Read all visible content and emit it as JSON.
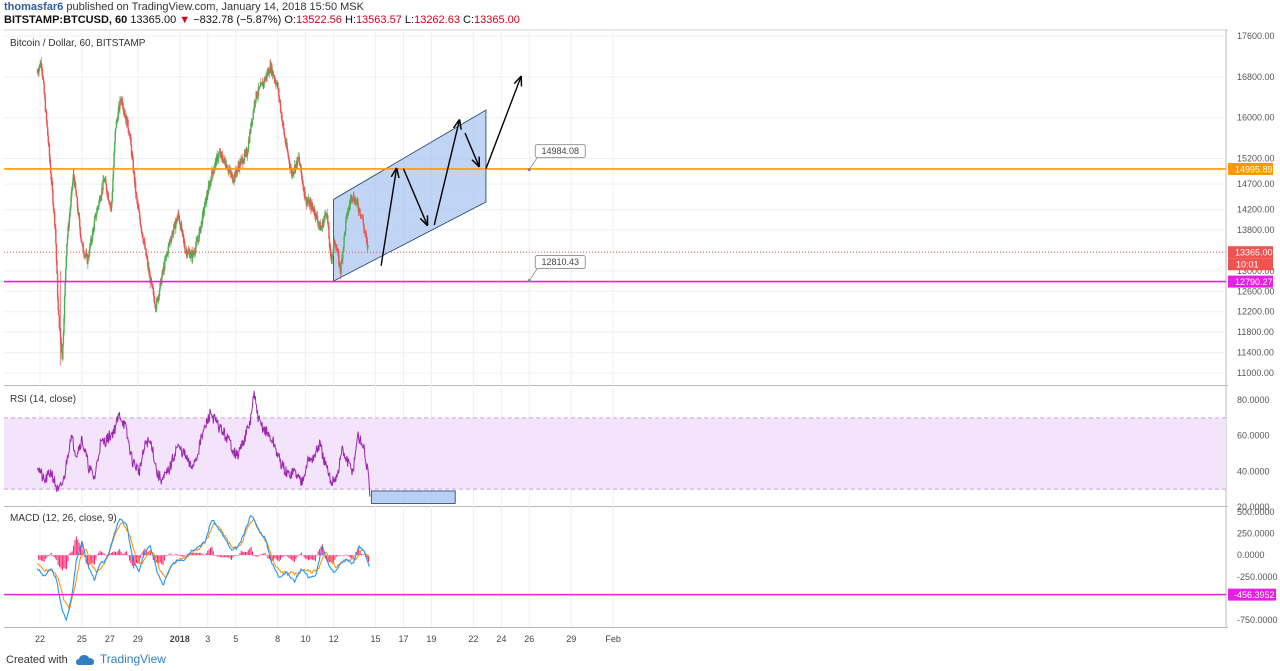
{
  "header": {
    "author": "thomasfar6",
    "published_text": "published on TradingView.com, January 14, 2018 15:50 MSK",
    "symbol": "BITSTAMP:BTCUSD, 60",
    "last": "13365.00",
    "change": "−832.78 (−5.87%)",
    "o_label": "O:",
    "o_value": "13522.56",
    "h_label": "H:",
    "h_value": "13563.57",
    "l_label": "L:",
    "l_value": "13262.63",
    "c_label": "C:",
    "c_value": "13365.00"
  },
  "footer": {
    "created": "Created with",
    "brand": "TradingView"
  },
  "colors": {
    "up": "#4caf50",
    "down": "#ef5350",
    "orange_line": "#ff9800",
    "magenta_line": "#e91ee3",
    "channel_fill": "#a8c4f0",
    "rsi_line": "#9c27b0",
    "rsi_band": "#f3e3fb",
    "macd_line": "#2196f3",
    "signal_line": "#ff8a00",
    "hist": "#ff1f6e"
  },
  "chart_data": [
    {
      "type": "candlestick",
      "title": "Bitcoin / Dollar, 60, BITSTAMP",
      "ylim": [
        10900,
        17700
      ],
      "y_ticks": [
        "17600.00",
        "16800.00",
        "16000.00",
        "15200.00",
        "14700.00",
        "14200.00",
        "13800.00",
        "13000.00",
        "12600.00",
        "12200.00",
        "11800.00",
        "11400.00",
        "11000.00"
      ],
      "y_tick_values": [
        17600,
        16800,
        16000,
        15200,
        14700,
        14200,
        13800,
        13000,
        12600,
        12200,
        11800,
        11400,
        11000
      ],
      "x_ticks": [
        "22",
        "25",
        "27",
        "29",
        "2018",
        "3",
        "5",
        "8",
        "10",
        "12",
        "15",
        "17",
        "19",
        "22",
        "24",
        "26",
        "29",
        "Feb"
      ],
      "x_tick_days": [
        0,
        3,
        5,
        7,
        10,
        12,
        14,
        17,
        19,
        21,
        24,
        26,
        28,
        31,
        33,
        35,
        38,
        41
      ],
      "last_candle_day": 23.5,
      "price_path": [
        [
          -0.2,
          16900
        ],
        [
          0.1,
          17100
        ],
        [
          0.6,
          15500
        ],
        [
          1.1,
          13800
        ],
        [
          1.3,
          12200
        ],
        [
          1.6,
          11300
        ],
        [
          1.9,
          13500
        ],
        [
          2.4,
          14900
        ],
        [
          3.0,
          13500
        ],
        [
          3.4,
          13200
        ],
        [
          4.0,
          14100
        ],
        [
          4.6,
          14800
        ],
        [
          5.1,
          14200
        ],
        [
          5.4,
          15800
        ],
        [
          5.8,
          16400
        ],
        [
          6.4,
          15700
        ],
        [
          6.9,
          14400
        ],
        [
          7.4,
          13600
        ],
        [
          7.9,
          12800
        ],
        [
          8.3,
          12300
        ],
        [
          8.8,
          13000
        ],
        [
          9.3,
          13600
        ],
        [
          9.9,
          14100
        ],
        [
          10.4,
          13400
        ],
        [
          10.9,
          13300
        ],
        [
          11.3,
          13600
        ],
        [
          11.8,
          14300
        ],
        [
          12.3,
          14900
        ],
        [
          12.8,
          15300
        ],
        [
          13.3,
          15100
        ],
        [
          13.8,
          14800
        ],
        [
          14.3,
          15100
        ],
        [
          14.8,
          15300
        ],
        [
          15.4,
          16400
        ],
        [
          16.0,
          16700
        ],
        [
          16.5,
          17000
        ],
        [
          17.0,
          16600
        ],
        [
          17.5,
          15600
        ],
        [
          18.0,
          14900
        ],
        [
          18.5,
          15200
        ],
        [
          19.0,
          14400
        ],
        [
          19.6,
          14200
        ],
        [
          20.1,
          13800
        ],
        [
          20.5,
          14200
        ],
        [
          20.8,
          13200
        ],
        [
          21.1,
          13600
        ],
        [
          21.5,
          13000
        ],
        [
          21.9,
          14000
        ],
        [
          22.3,
          14500
        ],
        [
          22.7,
          14300
        ],
        [
          23.0,
          14100
        ],
        [
          23.4,
          13500
        ],
        [
          23.6,
          13365
        ]
      ],
      "hlines": [
        {
          "price": 14995.89,
          "label": "14995.89",
          "color": "#ff9800"
        },
        {
          "price": 12790.27,
          "label": "12790.27",
          "color": "#e91ee3"
        },
        {
          "price": 13365.0,
          "label": "13365.00",
          "color": "#ef5350",
          "dotted": true
        }
      ],
      "last_time": "10:01",
      "callouts": [
        {
          "label": "14984.08",
          "day": 35.0,
          "price": 14984.08
        },
        {
          "label": "12810.43",
          "day": 35.0,
          "price": 12810.43
        }
      ],
      "channel": [
        [
          21.0,
          14400
        ],
        [
          31.9,
          16150
        ],
        [
          31.9,
          14350
        ],
        [
          21.0,
          12800
        ]
      ],
      "arrows": [
        [
          [
            24.4,
            13100
          ],
          [
            25.5,
            15000
          ]
        ],
        [
          [
            26.0,
            15000
          ],
          [
            27.7,
            13900
          ]
        ],
        [
          [
            28.2,
            13900
          ],
          [
            30.0,
            15950
          ]
        ],
        [
          [
            30.4,
            15700
          ],
          [
            31.4,
            15050
          ]
        ],
        [
          [
            31.9,
            15000
          ],
          [
            34.4,
            16800
          ]
        ]
      ]
    },
    {
      "type": "line",
      "title": "RSI (14, close)",
      "ylim": [
        18,
        88
      ],
      "y_ticks": [
        "80.0000",
        "60.0000",
        "40.0000",
        "20.0000"
      ],
      "y_tick_values": [
        80,
        60,
        40,
        20
      ],
      "band": [
        30,
        70
      ],
      "path": [
        [
          -0.2,
          44
        ],
        [
          0.3,
          34
        ],
        [
          0.8,
          40
        ],
        [
          1.3,
          28
        ],
        [
          1.7,
          35
        ],
        [
          2.2,
          60
        ],
        [
          2.6,
          50
        ],
        [
          3.0,
          58
        ],
        [
          3.5,
          42
        ],
        [
          3.9,
          36
        ],
        [
          4.3,
          55
        ],
        [
          4.8,
          58
        ],
        [
          5.3,
          63
        ],
        [
          5.7,
          72
        ],
        [
          6.1,
          65
        ],
        [
          6.6,
          46
        ],
        [
          7.1,
          40
        ],
        [
          7.6,
          57
        ],
        [
          8.0,
          55
        ],
        [
          8.4,
          38
        ],
        [
          8.8,
          35
        ],
        [
          9.3,
          42
        ],
        [
          9.8,
          54
        ],
        [
          10.3,
          50
        ],
        [
          10.8,
          42
        ],
        [
          11.2,
          48
        ],
        [
          11.6,
          60
        ],
        [
          12.2,
          73
        ],
        [
          12.7,
          66
        ],
        [
          13.1,
          62
        ],
        [
          13.6,
          56
        ],
        [
          14.1,
          48
        ],
        [
          14.6,
          58
        ],
        [
          15.0,
          66
        ],
        [
          15.3,
          83
        ],
        [
          15.7,
          67
        ],
        [
          16.2,
          62
        ],
        [
          16.7,
          56
        ],
        [
          17.2,
          45
        ],
        [
          17.7,
          38
        ],
        [
          18.2,
          40
        ],
        [
          18.7,
          34
        ],
        [
          19.1,
          45
        ],
        [
          19.6,
          48
        ],
        [
          20.0,
          55
        ],
        [
          20.4,
          44
        ],
        [
          20.8,
          34
        ],
        [
          21.3,
          38
        ],
        [
          21.6,
          52
        ],
        [
          22.0,
          45
        ],
        [
          22.4,
          40
        ],
        [
          22.7,
          60
        ],
        [
          23.1,
          55
        ],
        [
          23.4,
          42
        ],
        [
          23.6,
          28
        ]
      ],
      "target_box": [
        [
          23.7,
          29
        ],
        [
          29.7,
          22
        ]
      ]
    },
    {
      "type": "line",
      "title": "MACD (12, 26, close, 9)",
      "ylim": [
        -830,
        560
      ],
      "y_ticks": [
        "500.0000",
        "250.0000",
        "0.0000",
        "-250.0000",
        "-750.0000"
      ],
      "y_tick_values": [
        500,
        250,
        0,
        -250,
        -750
      ],
      "series": [
        {
          "role": "macd",
          "points": [
            [
              -0.2,
              -150
            ],
            [
              0.3,
              -250
            ],
            [
              0.8,
              -150
            ],
            [
              1.2,
              -300
            ],
            [
              1.6,
              -650
            ],
            [
              1.9,
              -750
            ],
            [
              2.3,
              -450
            ],
            [
              2.6,
              -50
            ],
            [
              3.0,
              150
            ],
            [
              3.5,
              -150
            ],
            [
              3.9,
              -280
            ],
            [
              4.3,
              -100
            ],
            [
              4.8,
              -50
            ],
            [
              5.3,
              250
            ],
            [
              5.7,
              420
            ],
            [
              6.2,
              350
            ],
            [
              6.7,
              -100
            ],
            [
              7.1,
              -180
            ],
            [
              7.5,
              50
            ],
            [
              7.9,
              100
            ],
            [
              8.4,
              -200
            ],
            [
              8.8,
              -350
            ],
            [
              9.3,
              -150
            ],
            [
              9.8,
              -50
            ],
            [
              10.3,
              -50
            ],
            [
              10.8,
              50
            ],
            [
              11.3,
              100
            ],
            [
              11.8,
              150
            ],
            [
              12.3,
              420
            ],
            [
              12.8,
              300
            ],
            [
              13.2,
              200
            ],
            [
              13.7,
              50
            ],
            [
              14.2,
              100
            ],
            [
              14.6,
              250
            ],
            [
              15.1,
              480
            ],
            [
              15.6,
              300
            ],
            [
              16.1,
              200
            ],
            [
              16.6,
              -100
            ],
            [
              17.1,
              -250
            ],
            [
              17.6,
              -200
            ],
            [
              18.2,
              -300
            ],
            [
              18.7,
              -150
            ],
            [
              19.2,
              -250
            ],
            [
              19.7,
              -250
            ],
            [
              20.2,
              100
            ],
            [
              20.6,
              -100
            ],
            [
              21.0,
              -200
            ],
            [
              21.5,
              -100
            ],
            [
              21.9,
              -50
            ],
            [
              22.4,
              -100
            ],
            [
              22.8,
              100
            ],
            [
              23.2,
              50
            ],
            [
              23.6,
              -150
            ]
          ]
        },
        {
          "role": "signal",
          "points": [
            [
              -0.2,
              -100
            ],
            [
              0.4,
              -180
            ],
            [
              0.9,
              -180
            ],
            [
              1.3,
              -260
            ],
            [
              1.7,
              -520
            ],
            [
              2.1,
              -620
            ],
            [
              2.5,
              -380
            ],
            [
              2.9,
              -20
            ],
            [
              3.3,
              80
            ],
            [
              3.7,
              -120
            ],
            [
              4.1,
              -200
            ],
            [
              4.6,
              -90
            ],
            [
              5.0,
              50
            ],
            [
              5.5,
              300
            ],
            [
              5.9,
              380
            ],
            [
              6.4,
              240
            ],
            [
              6.9,
              -40
            ],
            [
              7.3,
              -100
            ],
            [
              7.7,
              30
            ],
            [
              8.1,
              40
            ],
            [
              8.6,
              -180
            ],
            [
              9.0,
              -260
            ],
            [
              9.5,
              -110
            ],
            [
              10.0,
              -40
            ],
            [
              10.5,
              -20
            ],
            [
              11.0,
              40
            ],
            [
              11.5,
              90
            ],
            [
              12.0,
              200
            ],
            [
              12.5,
              380
            ],
            [
              13.0,
              280
            ],
            [
              13.5,
              140
            ],
            [
              13.9,
              80
            ],
            [
              14.4,
              120
            ],
            [
              14.8,
              300
            ],
            [
              15.3,
              420
            ],
            [
              15.8,
              250
            ],
            [
              16.3,
              120
            ],
            [
              16.8,
              -120
            ],
            [
              17.3,
              -200
            ],
            [
              17.8,
              -200
            ],
            [
              18.4,
              -220
            ],
            [
              18.9,
              -160
            ],
            [
              19.4,
              -200
            ],
            [
              19.9,
              -160
            ],
            [
              20.4,
              40
            ],
            [
              20.8,
              -60
            ],
            [
              21.2,
              -140
            ],
            [
              21.7,
              -70
            ],
            [
              22.1,
              -50
            ],
            [
              22.6,
              -40
            ],
            [
              23.0,
              60
            ],
            [
              23.4,
              20
            ],
            [
              23.6,
              -50
            ]
          ]
        }
      ],
      "hlines": [
        {
          "price": -456.3952,
          "label": "-456.3952",
          "color": "#e91ee3"
        }
      ]
    }
  ]
}
